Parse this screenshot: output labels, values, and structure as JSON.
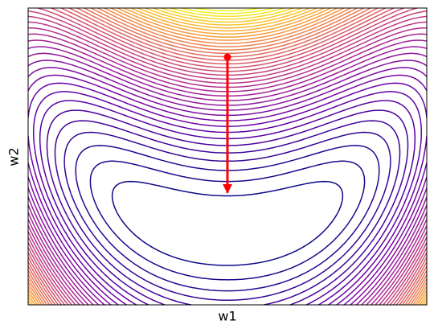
{
  "chart_data": {
    "type": "contour",
    "xlabel": "w1",
    "ylabel": "w2",
    "xlim": [
      -2,
      2
    ],
    "ylim": [
      -1,
      3
    ],
    "levels": 40,
    "colormap": "plasma",
    "arrow": {
      "x": [
        0,
        0
      ],
      "y": [
        2.34,
        0.51
      ],
      "color": "#ff0000"
    }
  }
}
